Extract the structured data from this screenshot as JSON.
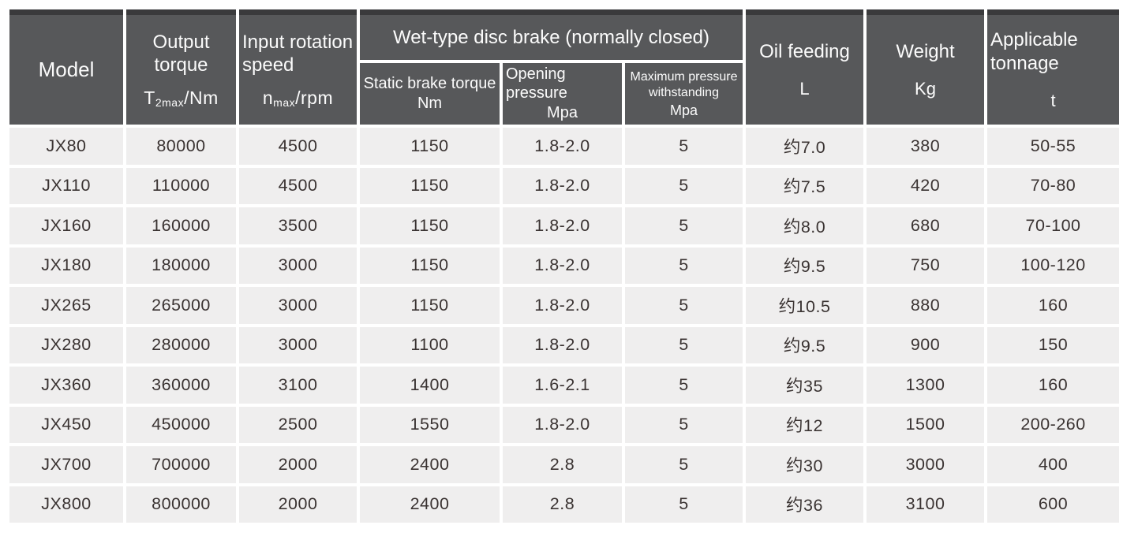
{
  "table": {
    "header": {
      "model": "Model",
      "output_torque": {
        "title": "Output torque",
        "symbol_base": "T",
        "symbol_sub": "2max",
        "symbol_unit": "/Nm"
      },
      "input_speed": {
        "title": "Input rotation speed",
        "symbol_base": "n",
        "symbol_sub": "max",
        "symbol_unit": "/rpm"
      },
      "brake_group": "Wet-type disc brake (normally closed)",
      "static_brake_torque": {
        "title": "Static brake torque",
        "unit": "Nm"
      },
      "opening_pressure": {
        "title": "Opening pressure",
        "unit": "Mpa"
      },
      "max_pressure": {
        "title": "Maximum pressure withstanding",
        "unit": "Mpa"
      },
      "oil_feeding": {
        "title": "Oil feeding",
        "unit": "L"
      },
      "weight": {
        "title": "Weight",
        "unit": "Kg"
      },
      "tonnage": {
        "title": "Applicable tonnage",
        "unit": "t"
      }
    },
    "row_keys": [
      "model",
      "output_torque",
      "input_speed",
      "static_brake_torque",
      "opening_pressure",
      "max_pressure",
      "oil_feeding",
      "weight",
      "tonnage"
    ],
    "rows": [
      {
        "model": "JX80",
        "output_torque": "80000",
        "input_speed": "4500",
        "static_brake_torque": "1150",
        "opening_pressure": "1.8-2.0",
        "max_pressure": "5",
        "oil_feeding": "约7.0",
        "weight": "380",
        "tonnage": "50-55"
      },
      {
        "model": "JX110",
        "output_torque": "110000",
        "input_speed": "4500",
        "static_brake_torque": "1150",
        "opening_pressure": "1.8-2.0",
        "max_pressure": "5",
        "oil_feeding": "约7.5",
        "weight": "420",
        "tonnage": "70-80"
      },
      {
        "model": "JX160",
        "output_torque": "160000",
        "input_speed": "3500",
        "static_brake_torque": "1150",
        "opening_pressure": "1.8-2.0",
        "max_pressure": "5",
        "oil_feeding": "约8.0",
        "weight": "680",
        "tonnage": "70-100"
      },
      {
        "model": "JX180",
        "output_torque": "180000",
        "input_speed": "3000",
        "static_brake_torque": "1150",
        "opening_pressure": "1.8-2.0",
        "max_pressure": "5",
        "oil_feeding": "约9.5",
        "weight": "750",
        "tonnage": "100-120"
      },
      {
        "model": "JX265",
        "output_torque": "265000",
        "input_speed": "3000",
        "static_brake_torque": "1150",
        "opening_pressure": "1.8-2.0",
        "max_pressure": "5",
        "oil_feeding": "约10.5",
        "weight": "880",
        "tonnage": "160"
      },
      {
        "model": "JX280",
        "output_torque": "280000",
        "input_speed": "3000",
        "static_brake_torque": "1100",
        "opening_pressure": "1.8-2.0",
        "max_pressure": "5",
        "oil_feeding": "约9.5",
        "weight": "900",
        "tonnage": "150"
      },
      {
        "model": "JX360",
        "output_torque": "360000",
        "input_speed": "3100",
        "static_brake_torque": "1400",
        "opening_pressure": "1.6-2.1",
        "max_pressure": "5",
        "oil_feeding": "约35",
        "weight": "1300",
        "tonnage": "160"
      },
      {
        "model": "JX450",
        "output_torque": "450000",
        "input_speed": "2500",
        "static_brake_torque": "1550",
        "opening_pressure": "1.8-2.0",
        "max_pressure": "5",
        "oil_feeding": "约12",
        "weight": "1500",
        "tonnage": "200-260"
      },
      {
        "model": "JX700",
        "output_torque": "700000",
        "input_speed": "2000",
        "static_brake_torque": "2400",
        "opening_pressure": "2.8",
        "max_pressure": "5",
        "oil_feeding": "约30",
        "weight": "3000",
        "tonnage": "400"
      },
      {
        "model": "JX800",
        "output_torque": "800000",
        "input_speed": "2000",
        "static_brake_torque": "2400",
        "opening_pressure": "2.8",
        "max_pressure": "5",
        "oil_feeding": "约36",
        "weight": "3100",
        "tonnage": "600"
      }
    ],
    "colors": {
      "header_bg": "#57585a",
      "header_top_strip": "#3a3a3c",
      "cell_bg": "#efeeee",
      "data_text": "#3a3332",
      "header_text": "#fbfbfb",
      "page_bg": "#ffffff"
    }
  }
}
